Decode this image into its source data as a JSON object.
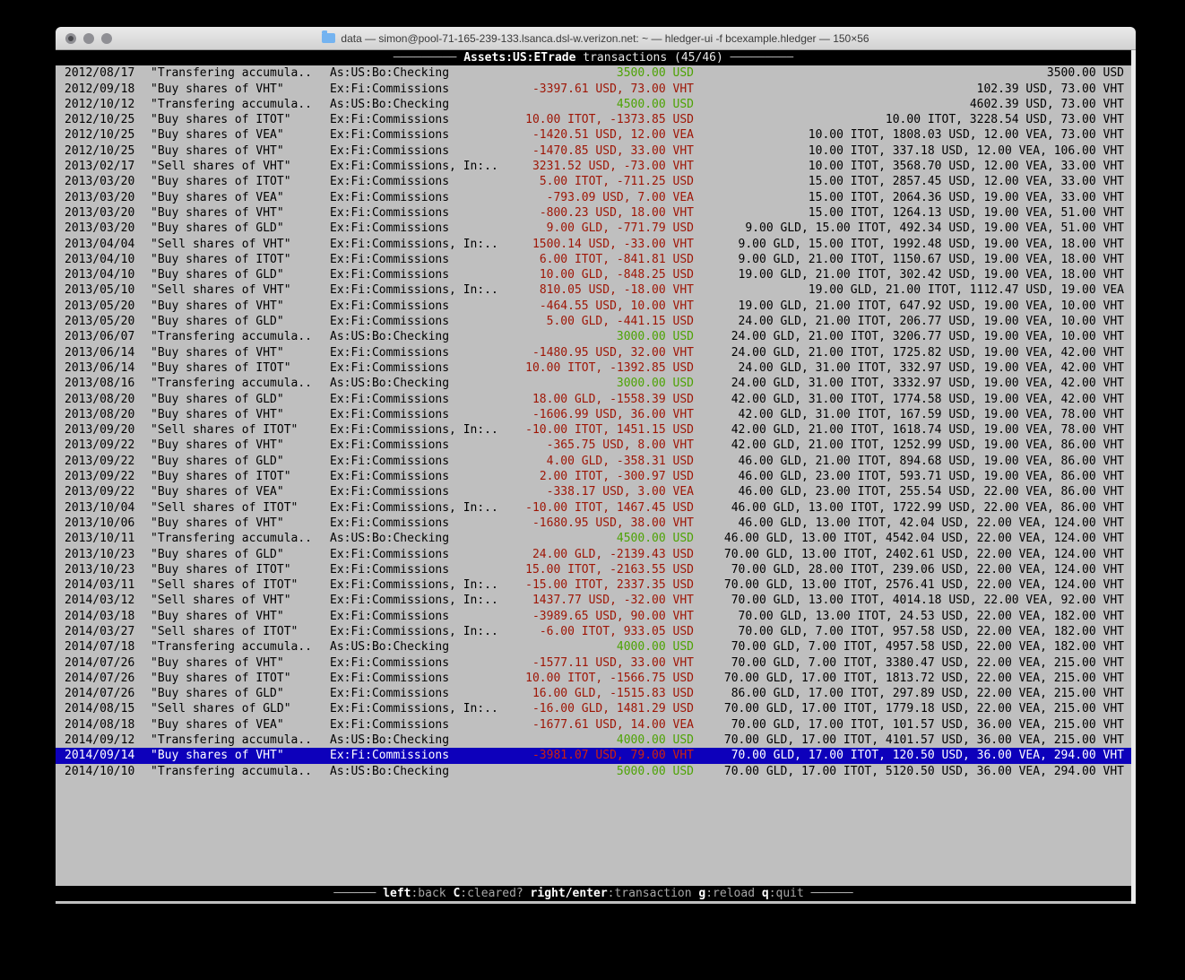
{
  "window": {
    "title": "data — simon@pool-71-165-239-133.lsanca.dsl-w.verizon.net: ~ — hledger-ui -f bcexample.hledger — 150×56"
  },
  "screen": {
    "colors": {
      "bg": "#bfbfbf",
      "fg": "#000000",
      "red": "#9e1505",
      "green": "#4da304",
      "selected_bg": "#0d00bb",
      "selected_fg": "#ffffff",
      "selected_red": "#cc2211",
      "bar_bg": "#000000",
      "bar_fg": "#e8e8e8",
      "bar_dim": "#a8a8a8"
    },
    "header": {
      "rule": "─────────",
      "account": "Assets:US:ETrade",
      "suffix": " transactions (45/46) "
    },
    "footer": {
      "rule": "──────",
      "items": [
        {
          "key": "left",
          "desc": ":back"
        },
        {
          "key": "C",
          "desc": ":cleared?"
        },
        {
          "key": "right/enter",
          "desc": ":transaction"
        },
        {
          "key": "g",
          "desc": ":reload"
        },
        {
          "key": "q",
          "desc": ":quit"
        }
      ]
    },
    "transactions": [
      {
        "date": "2012/08/17",
        "desc": "\"Transfering accumula..",
        "account": "As:US:Bo:Checking",
        "change": "3500.00 USD",
        "change_color": "green",
        "balance": "3500.00 USD",
        "selected": false
      },
      {
        "date": "2012/09/18",
        "desc": "\"Buy shares of VHT\"",
        "account": "Ex:Fi:Commissions",
        "change": "-3397.61 USD, 73.00 VHT",
        "change_color": "red",
        "balance": "102.39 USD, 73.00 VHT",
        "selected": false
      },
      {
        "date": "2012/10/12",
        "desc": "\"Transfering accumula..",
        "account": "As:US:Bo:Checking",
        "change": "4500.00 USD",
        "change_color": "green",
        "balance": "4602.39 USD, 73.00 VHT",
        "selected": false
      },
      {
        "date": "2012/10/25",
        "desc": "\"Buy shares of ITOT\"",
        "account": "Ex:Fi:Commissions",
        "change": "10.00 ITOT, -1373.85 USD",
        "change_color": "red",
        "balance": "10.00 ITOT, 3228.54 USD, 73.00 VHT",
        "selected": false
      },
      {
        "date": "2012/10/25",
        "desc": "\"Buy shares of VEA\"",
        "account": "Ex:Fi:Commissions",
        "change": "-1420.51 USD, 12.00 VEA",
        "change_color": "red",
        "balance": "10.00 ITOT, 1808.03 USD, 12.00 VEA, 73.00 VHT",
        "selected": false
      },
      {
        "date": "2012/10/25",
        "desc": "\"Buy shares of VHT\"",
        "account": "Ex:Fi:Commissions",
        "change": "-1470.85 USD, 33.00 VHT",
        "change_color": "red",
        "balance": "10.00 ITOT, 337.18 USD, 12.00 VEA, 106.00 VHT",
        "selected": false
      },
      {
        "date": "2013/02/17",
        "desc": "\"Sell shares of VHT\"",
        "account": "Ex:Fi:Commissions, In:..",
        "change": "3231.52 USD, -73.00 VHT",
        "change_color": "red",
        "balance": "10.00 ITOT, 3568.70 USD, 12.00 VEA, 33.00 VHT",
        "selected": false
      },
      {
        "date": "2013/03/20",
        "desc": "\"Buy shares of ITOT\"",
        "account": "Ex:Fi:Commissions",
        "change": "5.00 ITOT, -711.25 USD",
        "change_color": "red",
        "balance": "15.00 ITOT, 2857.45 USD, 12.00 VEA, 33.00 VHT",
        "selected": false
      },
      {
        "date": "2013/03/20",
        "desc": "\"Buy shares of VEA\"",
        "account": "Ex:Fi:Commissions",
        "change": "-793.09 USD, 7.00 VEA",
        "change_color": "red",
        "balance": "15.00 ITOT, 2064.36 USD, 19.00 VEA, 33.00 VHT",
        "selected": false
      },
      {
        "date": "2013/03/20",
        "desc": "\"Buy shares of VHT\"",
        "account": "Ex:Fi:Commissions",
        "change": "-800.23 USD, 18.00 VHT",
        "change_color": "red",
        "balance": "15.00 ITOT, 1264.13 USD, 19.00 VEA, 51.00 VHT",
        "selected": false
      },
      {
        "date": "2013/03/20",
        "desc": "\"Buy shares of GLD\"",
        "account": "Ex:Fi:Commissions",
        "change": "9.00 GLD, -771.79 USD",
        "change_color": "red",
        "balance": "9.00 GLD, 15.00 ITOT, 492.34 USD, 19.00 VEA, 51.00 VHT",
        "selected": false
      },
      {
        "date": "2013/04/04",
        "desc": "\"Sell shares of VHT\"",
        "account": "Ex:Fi:Commissions, In:..",
        "change": "1500.14 USD, -33.00 VHT",
        "change_color": "red",
        "balance": "9.00 GLD, 15.00 ITOT, 1992.48 USD, 19.00 VEA, 18.00 VHT",
        "selected": false
      },
      {
        "date": "2013/04/10",
        "desc": "\"Buy shares of ITOT\"",
        "account": "Ex:Fi:Commissions",
        "change": "6.00 ITOT, -841.81 USD",
        "change_color": "red",
        "balance": "9.00 GLD, 21.00 ITOT, 1150.67 USD, 19.00 VEA, 18.00 VHT",
        "selected": false
      },
      {
        "date": "2013/04/10",
        "desc": "\"Buy shares of GLD\"",
        "account": "Ex:Fi:Commissions",
        "change": "10.00 GLD, -848.25 USD",
        "change_color": "red",
        "balance": "19.00 GLD, 21.00 ITOT, 302.42 USD, 19.00 VEA, 18.00 VHT",
        "selected": false
      },
      {
        "date": "2013/05/10",
        "desc": "\"Sell shares of VHT\"",
        "account": "Ex:Fi:Commissions, In:..",
        "change": "810.05 USD, -18.00 VHT",
        "change_color": "red",
        "balance": "19.00 GLD, 21.00 ITOT, 1112.47 USD, 19.00 VEA",
        "selected": false
      },
      {
        "date": "2013/05/20",
        "desc": "\"Buy shares of VHT\"",
        "account": "Ex:Fi:Commissions",
        "change": "-464.55 USD, 10.00 VHT",
        "change_color": "red",
        "balance": "19.00 GLD, 21.00 ITOT, 647.92 USD, 19.00 VEA, 10.00 VHT",
        "selected": false
      },
      {
        "date": "2013/05/20",
        "desc": "\"Buy shares of GLD\"",
        "account": "Ex:Fi:Commissions",
        "change": "5.00 GLD, -441.15 USD",
        "change_color": "red",
        "balance": "24.00 GLD, 21.00 ITOT, 206.77 USD, 19.00 VEA, 10.00 VHT",
        "selected": false
      },
      {
        "date": "2013/06/07",
        "desc": "\"Transfering accumula..",
        "account": "As:US:Bo:Checking",
        "change": "3000.00 USD",
        "change_color": "green",
        "balance": "24.00 GLD, 21.00 ITOT, 3206.77 USD, 19.00 VEA, 10.00 VHT",
        "selected": false
      },
      {
        "date": "2013/06/14",
        "desc": "\"Buy shares of VHT\"",
        "account": "Ex:Fi:Commissions",
        "change": "-1480.95 USD, 32.00 VHT",
        "change_color": "red",
        "balance": "24.00 GLD, 21.00 ITOT, 1725.82 USD, 19.00 VEA, 42.00 VHT",
        "selected": false
      },
      {
        "date": "2013/06/14",
        "desc": "\"Buy shares of ITOT\"",
        "account": "Ex:Fi:Commissions",
        "change": "10.00 ITOT, -1392.85 USD",
        "change_color": "red",
        "balance": "24.00 GLD, 31.00 ITOT, 332.97 USD, 19.00 VEA, 42.00 VHT",
        "selected": false
      },
      {
        "date": "2013/08/16",
        "desc": "\"Transfering accumula..",
        "account": "As:US:Bo:Checking",
        "change": "3000.00 USD",
        "change_color": "green",
        "balance": "24.00 GLD, 31.00 ITOT, 3332.97 USD, 19.00 VEA, 42.00 VHT",
        "selected": false
      },
      {
        "date": "2013/08/20",
        "desc": "\"Buy shares of GLD\"",
        "account": "Ex:Fi:Commissions",
        "change": "18.00 GLD, -1558.39 USD",
        "change_color": "red",
        "balance": "42.00 GLD, 31.00 ITOT, 1774.58 USD, 19.00 VEA, 42.00 VHT",
        "selected": false
      },
      {
        "date": "2013/08/20",
        "desc": "\"Buy shares of VHT\"",
        "account": "Ex:Fi:Commissions",
        "change": "-1606.99 USD, 36.00 VHT",
        "change_color": "red",
        "balance": "42.00 GLD, 31.00 ITOT, 167.59 USD, 19.00 VEA, 78.00 VHT",
        "selected": false
      },
      {
        "date": "2013/09/20",
        "desc": "\"Sell shares of ITOT\"",
        "account": "Ex:Fi:Commissions, In:..",
        "change": "-10.00 ITOT, 1451.15 USD",
        "change_color": "red",
        "balance": "42.00 GLD, 21.00 ITOT, 1618.74 USD, 19.00 VEA, 78.00 VHT",
        "selected": false
      },
      {
        "date": "2013/09/22",
        "desc": "\"Buy shares of VHT\"",
        "account": "Ex:Fi:Commissions",
        "change": "-365.75 USD, 8.00 VHT",
        "change_color": "red",
        "balance": "42.00 GLD, 21.00 ITOT, 1252.99 USD, 19.00 VEA, 86.00 VHT",
        "selected": false
      },
      {
        "date": "2013/09/22",
        "desc": "\"Buy shares of GLD\"",
        "account": "Ex:Fi:Commissions",
        "change": "4.00 GLD, -358.31 USD",
        "change_color": "red",
        "balance": "46.00 GLD, 21.00 ITOT, 894.68 USD, 19.00 VEA, 86.00 VHT",
        "selected": false
      },
      {
        "date": "2013/09/22",
        "desc": "\"Buy shares of ITOT\"",
        "account": "Ex:Fi:Commissions",
        "change": "2.00 ITOT, -300.97 USD",
        "change_color": "red",
        "balance": "46.00 GLD, 23.00 ITOT, 593.71 USD, 19.00 VEA, 86.00 VHT",
        "selected": false
      },
      {
        "date": "2013/09/22",
        "desc": "\"Buy shares of VEA\"",
        "account": "Ex:Fi:Commissions",
        "change": "-338.17 USD, 3.00 VEA",
        "change_color": "red",
        "balance": "46.00 GLD, 23.00 ITOT, 255.54 USD, 22.00 VEA, 86.00 VHT",
        "selected": false
      },
      {
        "date": "2013/10/04",
        "desc": "\"Sell shares of ITOT\"",
        "account": "Ex:Fi:Commissions, In:..",
        "change": "-10.00 ITOT, 1467.45 USD",
        "change_color": "red",
        "balance": "46.00 GLD, 13.00 ITOT, 1722.99 USD, 22.00 VEA, 86.00 VHT",
        "selected": false
      },
      {
        "date": "2013/10/06",
        "desc": "\"Buy shares of VHT\"",
        "account": "Ex:Fi:Commissions",
        "change": "-1680.95 USD, 38.00 VHT",
        "change_color": "red",
        "balance": "46.00 GLD, 13.00 ITOT, 42.04 USD, 22.00 VEA, 124.00 VHT",
        "selected": false
      },
      {
        "date": "2013/10/11",
        "desc": "\"Transfering accumula..",
        "account": "As:US:Bo:Checking",
        "change": "4500.00 USD",
        "change_color": "green",
        "balance": "46.00 GLD, 13.00 ITOT, 4542.04 USD, 22.00 VEA, 124.00 VHT",
        "selected": false
      },
      {
        "date": "2013/10/23",
        "desc": "\"Buy shares of GLD\"",
        "account": "Ex:Fi:Commissions",
        "change": "24.00 GLD, -2139.43 USD",
        "change_color": "red",
        "balance": "70.00 GLD, 13.00 ITOT, 2402.61 USD, 22.00 VEA, 124.00 VHT",
        "selected": false
      },
      {
        "date": "2013/10/23",
        "desc": "\"Buy shares of ITOT\"",
        "account": "Ex:Fi:Commissions",
        "change": "15.00 ITOT, -2163.55 USD",
        "change_color": "red",
        "balance": "70.00 GLD, 28.00 ITOT, 239.06 USD, 22.00 VEA, 124.00 VHT",
        "selected": false
      },
      {
        "date": "2014/03/11",
        "desc": "\"Sell shares of ITOT\"",
        "account": "Ex:Fi:Commissions, In:..",
        "change": "-15.00 ITOT, 2337.35 USD",
        "change_color": "red",
        "balance": "70.00 GLD, 13.00 ITOT, 2576.41 USD, 22.00 VEA, 124.00 VHT",
        "selected": false
      },
      {
        "date": "2014/03/12",
        "desc": "\"Sell shares of VHT\"",
        "account": "Ex:Fi:Commissions, In:..",
        "change": "1437.77 USD, -32.00 VHT",
        "change_color": "red",
        "balance": "70.00 GLD, 13.00 ITOT, 4014.18 USD, 22.00 VEA, 92.00 VHT",
        "selected": false
      },
      {
        "date": "2014/03/18",
        "desc": "\"Buy shares of VHT\"",
        "account": "Ex:Fi:Commissions",
        "change": "-3989.65 USD, 90.00 VHT",
        "change_color": "red",
        "balance": "70.00 GLD, 13.00 ITOT, 24.53 USD, 22.00 VEA, 182.00 VHT",
        "selected": false
      },
      {
        "date": "2014/03/27",
        "desc": "\"Sell shares of ITOT\"",
        "account": "Ex:Fi:Commissions, In:..",
        "change": "-6.00 ITOT, 933.05 USD",
        "change_color": "red",
        "balance": "70.00 GLD, 7.00 ITOT, 957.58 USD, 22.00 VEA, 182.00 VHT",
        "selected": false
      },
      {
        "date": "2014/07/18",
        "desc": "\"Transfering accumula..",
        "account": "As:US:Bo:Checking",
        "change": "4000.00 USD",
        "change_color": "green",
        "balance": "70.00 GLD, 7.00 ITOT, 4957.58 USD, 22.00 VEA, 182.00 VHT",
        "selected": false
      },
      {
        "date": "2014/07/26",
        "desc": "\"Buy shares of VHT\"",
        "account": "Ex:Fi:Commissions",
        "change": "-1577.11 USD, 33.00 VHT",
        "change_color": "red",
        "balance": "70.00 GLD, 7.00 ITOT, 3380.47 USD, 22.00 VEA, 215.00 VHT",
        "selected": false
      },
      {
        "date": "2014/07/26",
        "desc": "\"Buy shares of ITOT\"",
        "account": "Ex:Fi:Commissions",
        "change": "10.00 ITOT, -1566.75 USD",
        "change_color": "red",
        "balance": "70.00 GLD, 17.00 ITOT, 1813.72 USD, 22.00 VEA, 215.00 VHT",
        "selected": false
      },
      {
        "date": "2014/07/26",
        "desc": "\"Buy shares of GLD\"",
        "account": "Ex:Fi:Commissions",
        "change": "16.00 GLD, -1515.83 USD",
        "change_color": "red",
        "balance": "86.00 GLD, 17.00 ITOT, 297.89 USD, 22.00 VEA, 215.00 VHT",
        "selected": false
      },
      {
        "date": "2014/08/15",
        "desc": "\"Sell shares of GLD\"",
        "account": "Ex:Fi:Commissions, In:..",
        "change": "-16.00 GLD, 1481.29 USD",
        "change_color": "red",
        "balance": "70.00 GLD, 17.00 ITOT, 1779.18 USD, 22.00 VEA, 215.00 VHT",
        "selected": false
      },
      {
        "date": "2014/08/18",
        "desc": "\"Buy shares of VEA\"",
        "account": "Ex:Fi:Commissions",
        "change": "-1677.61 USD, 14.00 VEA",
        "change_color": "red",
        "balance": "70.00 GLD, 17.00 ITOT, 101.57 USD, 36.00 VEA, 215.00 VHT",
        "selected": false
      },
      {
        "date": "2014/09/12",
        "desc": "\"Transfering accumula..",
        "account": "As:US:Bo:Checking",
        "change": "4000.00 USD",
        "change_color": "green",
        "balance": "70.00 GLD, 17.00 ITOT, 4101.57 USD, 36.00 VEA, 215.00 VHT",
        "selected": false
      },
      {
        "date": "2014/09/14",
        "desc": "\"Buy shares of VHT\"",
        "account": "Ex:Fi:Commissions",
        "change": "-3981.07 USD, 79.00 VHT",
        "change_color": "red",
        "balance": "70.00 GLD, 17.00 ITOT, 120.50 USD, 36.00 VEA, 294.00 VHT",
        "selected": true
      },
      {
        "date": "2014/10/10",
        "desc": "\"Transfering accumula..",
        "account": "As:US:Bo:Checking",
        "change": "5000.00 USD",
        "change_color": "green",
        "balance": "70.00 GLD, 17.00 ITOT, 5120.50 USD, 36.00 VEA, 294.00 VHT",
        "selected": false
      }
    ]
  }
}
